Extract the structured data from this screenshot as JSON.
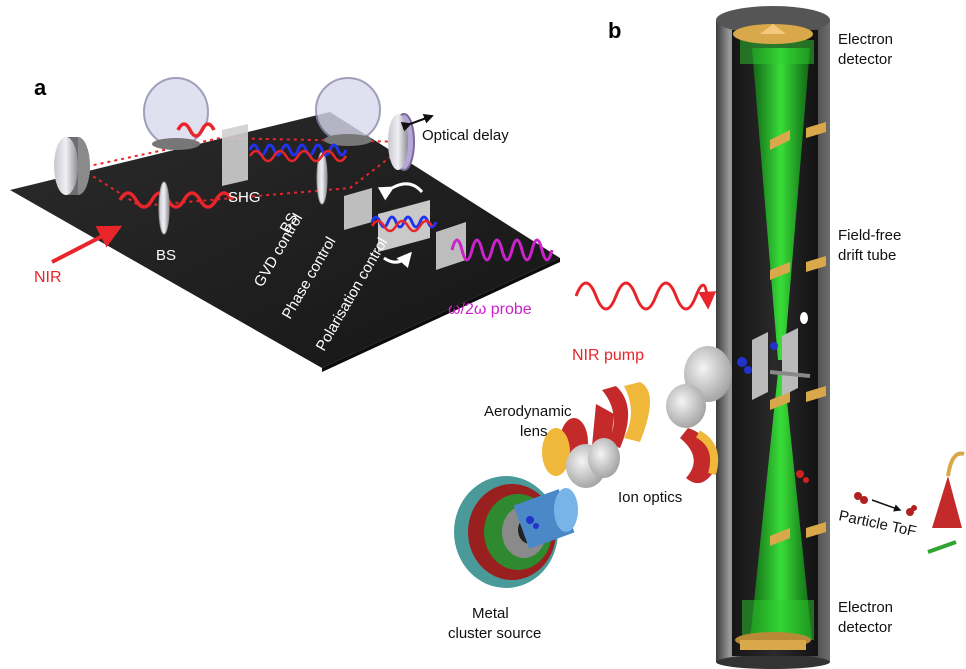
{
  "panels": {
    "a": "a",
    "b": "b"
  },
  "panel_a": {
    "labels": {
      "optical_delay": "Optical delay",
      "shg": "SHG",
      "bs1": "BS",
      "bs2": "BS",
      "nir": "NIR",
      "gvd": "GVD control",
      "phase": "Phase control",
      "polarisation": "Polarisation control",
      "probe": "ω/2ω probe"
    }
  },
  "panel_b": {
    "labels": {
      "electron_detector_top_1": "Electron",
      "electron_detector_top_2": "detector",
      "drift_tube_1": "Field-free",
      "drift_tube_2": "drift tube",
      "nir_pump": "NIR pump",
      "aero_lens_1": "Aerodynamic",
      "aero_lens_2": "lens",
      "ion_optics": "Ion optics",
      "metal_source_1": "Metal",
      "metal_source_2": "cluster source",
      "particle_tof": "Particle ToF",
      "electron_detector_bottom_1": "Electron",
      "electron_detector_bottom_2": "detector"
    }
  },
  "colors": {
    "nir_red": "#e8252a",
    "probe_magenta": "#cc22cc",
    "probe_blue": "#2233ee",
    "electron_green": "#22dd22",
    "table_black": "#1e1e1e",
    "brass": "#d9a84a"
  }
}
